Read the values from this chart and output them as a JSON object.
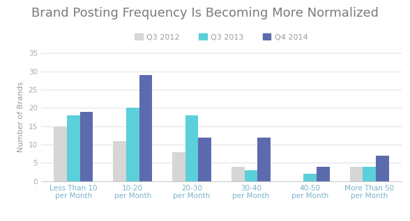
{
  "title": "Brand Posting Frequency Is Becoming More Normalized",
  "categories": [
    "Less Than 10\nper Month",
    "10-20\nper Month",
    "20-30\nper Month",
    "30-40\nper Month",
    "40-50\nper Month",
    "More Than 50\nper Month"
  ],
  "series": [
    {
      "label": "Q3 2012",
      "color": "#d6d6d6",
      "values": [
        15,
        11,
        8,
        4,
        0,
        4
      ]
    },
    {
      "label": "Q3 2013",
      "color": "#5bcfda",
      "values": [
        18,
        20,
        18,
        3,
        2,
        4
      ]
    },
    {
      "label": "Q4 2014",
      "color": "#5b6bad",
      "values": [
        19,
        29,
        12,
        12,
        4,
        7
      ]
    }
  ],
  "ylabel": "Number of Brands",
  "ylim": [
    0,
    35
  ],
  "yticks": [
    0,
    5,
    10,
    15,
    20,
    25,
    30,
    35
  ],
  "background_color": "#ffffff",
  "title_fontsize": 13,
  "label_fontsize": 8,
  "tick_fontsize": 7.5,
  "legend_fontsize": 8,
  "bar_width": 0.22,
  "xtick_color": "#7ab3c8",
  "ytick_color": "#aaaaaa",
  "grid_color": "#e0e0e0",
  "title_color": "#7a7a7a",
  "ylabel_color": "#9a9a9a",
  "legend_color": "#9a9a9a"
}
